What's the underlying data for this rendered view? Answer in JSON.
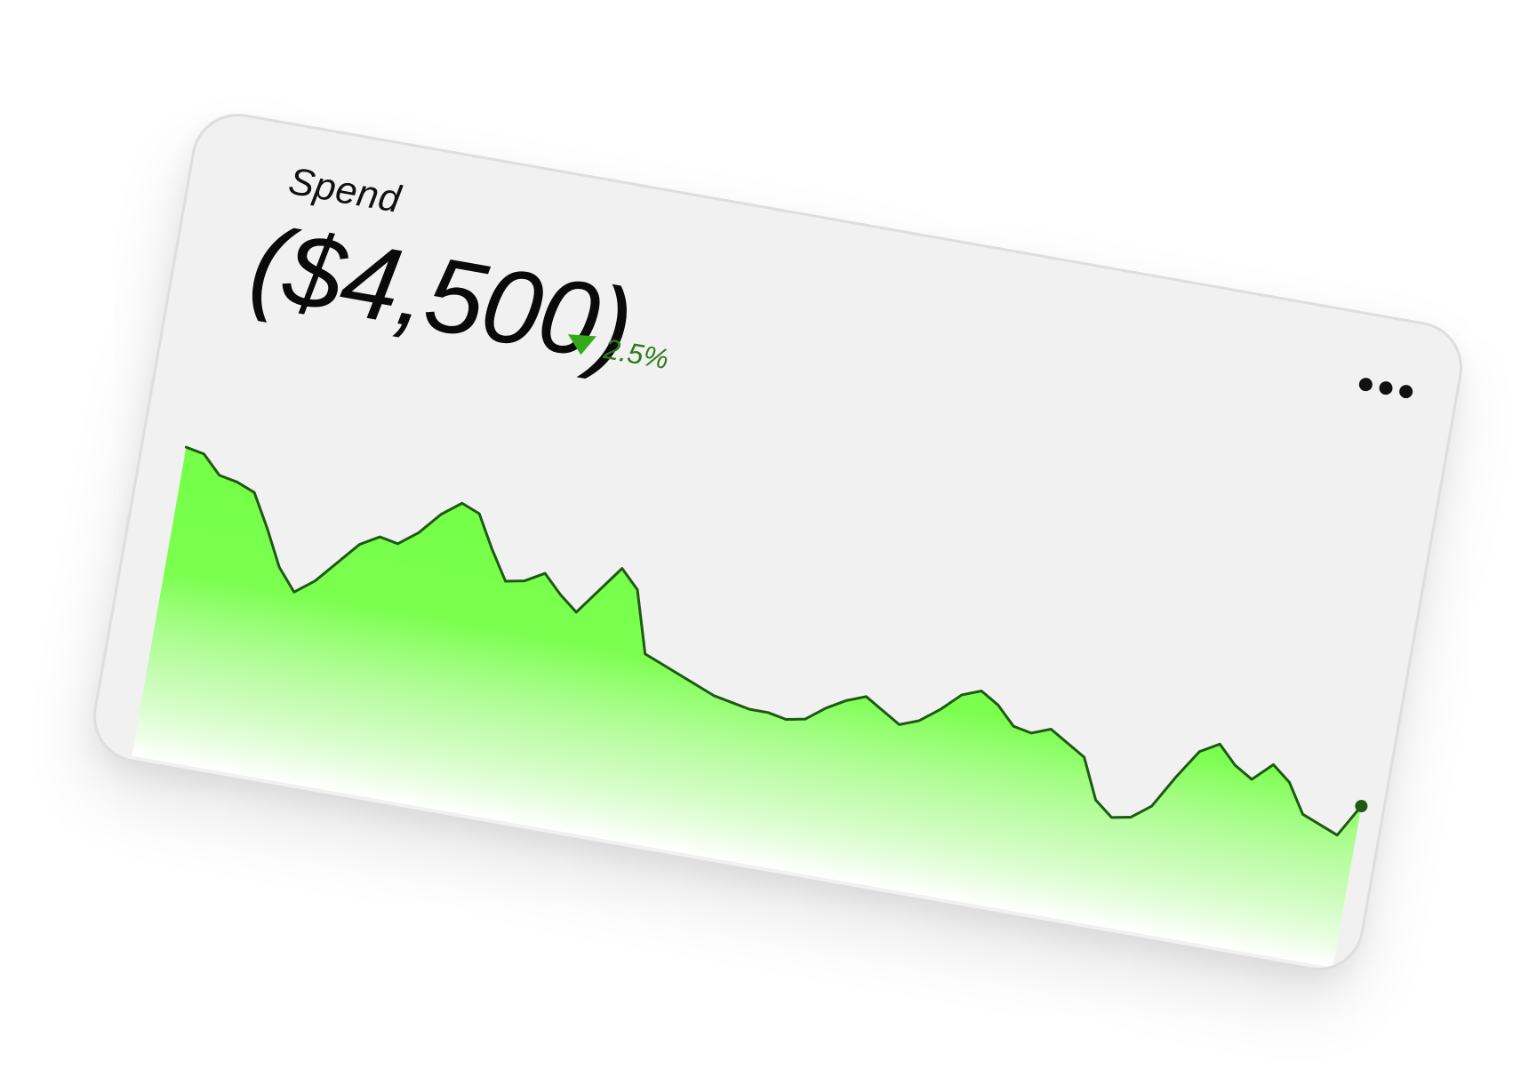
{
  "card": {
    "title": "Spend",
    "amount": "($4,500)",
    "change": {
      "direction": "down",
      "value": "2.5%",
      "color": "#34a91b"
    },
    "menu_icon": "more-horizontal-icon"
  },
  "chart_data": {
    "type": "area",
    "title": "Spend",
    "xlabel": "",
    "ylabel": "",
    "grid": false,
    "ylim": [
      0,
      100
    ],
    "x": [
      0,
      1,
      2,
      3,
      4,
      5,
      6,
      7,
      8,
      9,
      10,
      11,
      12,
      13,
      14,
      15,
      16,
      17,
      18,
      19,
      20,
      21,
      22,
      23,
      24,
      25,
      26,
      27,
      28,
      29,
      30,
      31,
      32,
      33,
      34,
      35,
      36,
      37,
      38,
      39,
      40,
      41,
      42,
      43,
      44,
      45,
      46,
      47,
      48,
      49,
      50,
      51,
      52,
      53,
      54,
      55,
      56,
      57,
      58,
      59,
      60,
      61,
      62,
      63,
      64,
      65
    ],
    "series": [
      {
        "name": "Spend",
        "color": "#7bff4f",
        "line_color": "#1d5a12",
        "values": [
          86,
          85,
          80,
          79,
          77,
          68,
          58,
          52,
          56,
          62,
          68,
          71,
          70,
          74,
          80,
          84,
          82,
          73,
          65,
          66,
          69,
          64,
          60,
          67,
          74,
          69,
          52,
          50,
          48,
          46,
          44,
          43,
          42,
          42,
          41,
          42,
          46,
          49,
          51,
          48,
          45,
          47,
          51,
          56,
          58,
          55,
          50,
          49,
          51,
          48,
          45,
          34,
          30,
          31,
          35,
          44,
          52,
          55,
          50,
          47,
          52,
          48,
          40,
          38,
          36,
          45
        ]
      }
    ],
    "end_marker": true
  }
}
